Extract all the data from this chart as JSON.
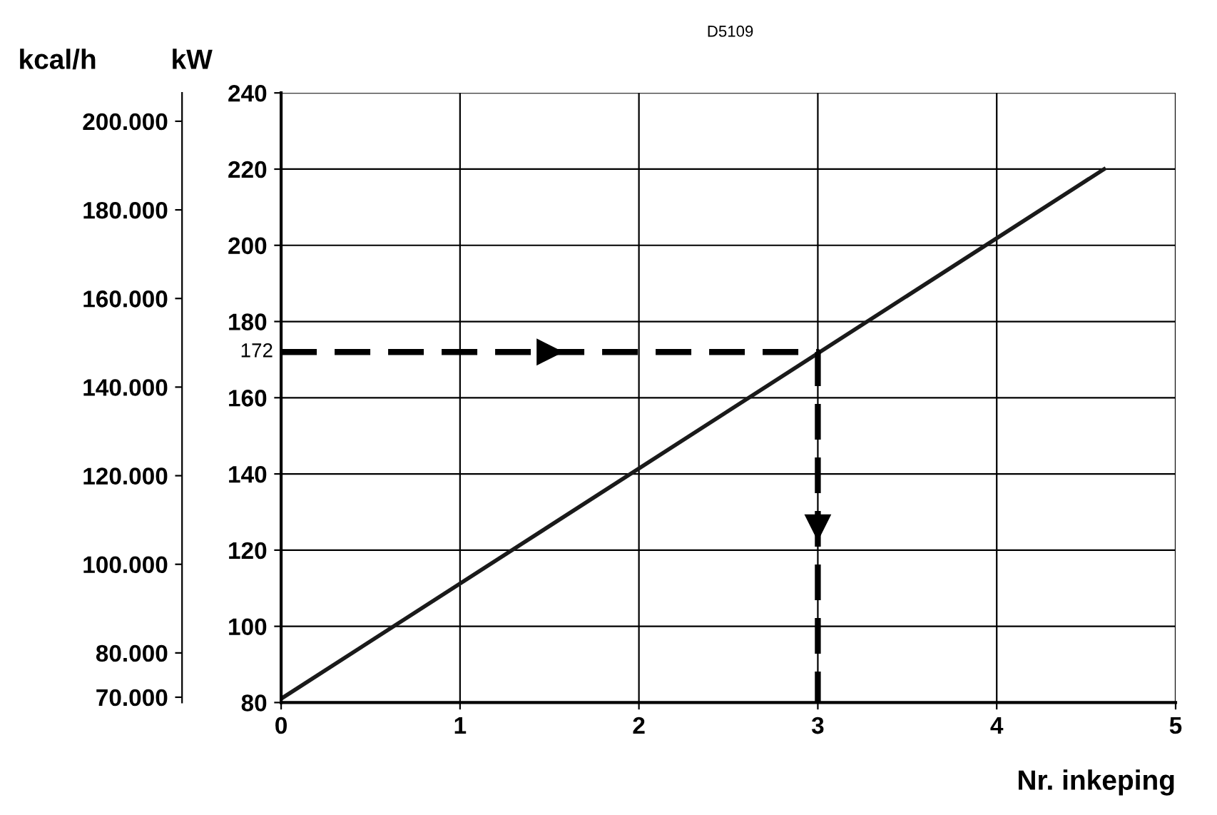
{
  "chart_data": {
    "type": "line",
    "xlabel": "Nr. inkeping",
    "ylabel": "kW",
    "y2label": "kcal/h",
    "annotations": [
      "D5109",
      {
        "text": "172",
        "x": 0,
        "y": 172
      }
    ],
    "series": [
      {
        "x": [
          0,
          4.6
        ],
        "values": [
          81,
          220
        ],
        "color": "#1a1a1a",
        "line_style": "solid"
      },
      {
        "x": [
          0,
          3,
          3
        ],
        "values": [
          172,
          172,
          80
        ],
        "color": "#000000",
        "line_style": "dashed"
      }
    ],
    "xlim": [
      0,
      5
    ],
    "xticks": [
      0,
      1,
      2,
      3,
      4,
      5
    ],
    "ylim": [
      80,
      240
    ],
    "yticks": [
      80,
      100,
      120,
      140,
      160,
      180,
      200,
      220,
      240
    ],
    "y2lim": [
      68800,
      206400
    ],
    "y2ticks": [
      {
        "value": 70000,
        "label": "70.000"
      },
      {
        "value": 80000,
        "label": "80.000"
      },
      {
        "value": 100000,
        "label": "100.000"
      },
      {
        "value": 120000,
        "label": "120.000"
      },
      {
        "value": 140000,
        "label": "140.000"
      },
      {
        "value": 160000,
        "label": "160.000"
      },
      {
        "value": 180000,
        "label": "180.000"
      },
      {
        "value": 200000,
        "label": "200.000"
      }
    ],
    "grid": true,
    "marker": "none"
  }
}
